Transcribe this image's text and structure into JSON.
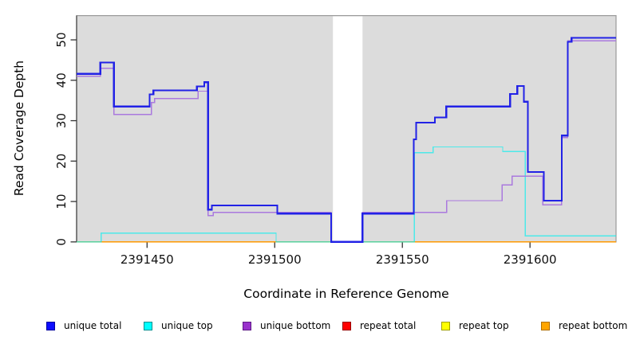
{
  "titles": {
    "x": "Coordinate in Reference Genome",
    "y": "Read Coverage Depth"
  },
  "legend": {
    "position": "bottom",
    "items": [
      {
        "label": "unique total",
        "fill": "#0d0dff",
        "border": "#0000a0"
      },
      {
        "label": "unique top",
        "fill": "#00ffff",
        "border": "#008f8f"
      },
      {
        "label": "unique bottom",
        "fill": "#9932cc",
        "border": "#5e1a86"
      },
      {
        "label": "repeat total",
        "fill": "#ff0000",
        "border": "#980000"
      },
      {
        "label": "repeat top",
        "fill": "#ffff00",
        "border": "#a0a000"
      },
      {
        "label": "repeat bottom",
        "fill": "#ffa500",
        "border": "#b06f00"
      }
    ]
  },
  "chart_data": {
    "type": "line",
    "step": true,
    "title": "",
    "xlabel": "Coordinate in Reference Genome",
    "ylabel": "Read Coverage Depth",
    "xlim": [
      2391422.4,
      2391633.7
    ],
    "ylim": [
      0,
      56
    ],
    "x_ticks": [
      2391450,
      2391500,
      2391550,
      2391600
    ],
    "y_ticks": [
      0,
      10,
      20,
      30,
      40,
      50
    ],
    "grid": false,
    "panel_bg": "#dcdcdc",
    "masked_region": {
      "x_start": 2391522.8,
      "x_end": 2391534.4,
      "color": "#ffffff"
    },
    "series": [
      {
        "name": "repeat total",
        "color": "#ff0000",
        "width": 1.3,
        "opacity": 1,
        "points": [
          [
            2391422.4,
            0
          ]
        ]
      },
      {
        "name": "repeat top",
        "color": "#ffff00",
        "width": 1.3,
        "opacity": 1,
        "points": [
          [
            2391422.4,
            0
          ]
        ]
      },
      {
        "name": "repeat bottom",
        "color": "#ff9800",
        "width": 1.6,
        "opacity": 1,
        "points": [
          [
            2391422.4,
            0
          ]
        ]
      },
      {
        "name": "unique top",
        "color": "#00efef",
        "width": 1.3,
        "opacity": 0.65,
        "points": [
          [
            2391422.4,
            0
          ],
          [
            2391432,
            2.2
          ],
          [
            2391500.5,
            0
          ],
          [
            2391554.7,
            22.1
          ],
          [
            2391562,
            23.5
          ],
          [
            2391589.3,
            22.4
          ],
          [
            2391598.1,
            1.5
          ]
        ]
      },
      {
        "name": "unique bottom",
        "color": "#a673dd",
        "width": 1.4,
        "opacity": 0.95,
        "points": [
          [
            2391422.4,
            41
          ],
          [
            2391431.7,
            43
          ],
          [
            2391437,
            31.5
          ],
          [
            2391451.7,
            34.5
          ],
          [
            2391453,
            35.5
          ],
          [
            2391470,
            37.3
          ],
          [
            2391473.9,
            6.5
          ],
          [
            2391475.9,
            7.3
          ],
          [
            2391522.1,
            0
          ],
          [
            2391534.4,
            7.3
          ],
          [
            2391567.4,
            10.2
          ],
          [
            2391589.1,
            14.1
          ],
          [
            2391593,
            16.3
          ],
          [
            2391605,
            9.2
          ],
          [
            2391612.4,
            25.8
          ],
          [
            2391614.8,
            49.8
          ]
        ]
      },
      {
        "name": "unique total",
        "color": "#2222e6",
        "width": 2.2,
        "opacity": 1,
        "points": [
          [
            2391422.4,
            41.6
          ],
          [
            2391431.7,
            44.4
          ],
          [
            2391437,
            33.5
          ],
          [
            2391451,
            36.5
          ],
          [
            2391452.5,
            37.5
          ],
          [
            2391469.5,
            38.5
          ],
          [
            2391472.4,
            39.5
          ],
          [
            2391473.9,
            8
          ],
          [
            2391475.4,
            9
          ],
          [
            2391501,
            7
          ],
          [
            2391522.1,
            0
          ],
          [
            2391534.4,
            7
          ],
          [
            2391554.5,
            25.4
          ],
          [
            2391555.4,
            29.5
          ],
          [
            2391562.7,
            30.8
          ],
          [
            2391567.2,
            33.5
          ],
          [
            2391592.2,
            36.6
          ],
          [
            2391595,
            38.6
          ],
          [
            2391597.6,
            34.7
          ],
          [
            2391599.2,
            17.3
          ],
          [
            2391605.4,
            10.2
          ],
          [
            2391612.4,
            26.3
          ],
          [
            2391614.8,
            49.5
          ],
          [
            2391616.3,
            50.5
          ]
        ]
      }
    ]
  }
}
